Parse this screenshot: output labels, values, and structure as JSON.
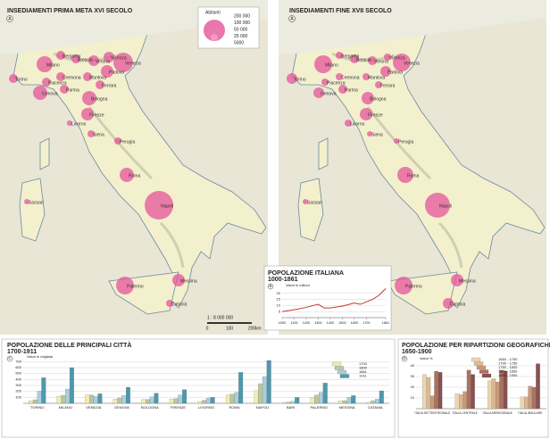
{
  "maps": [
    {
      "title": "INSEDIAMENTI PRIMA META XVI SECOLO",
      "letter": "A",
      "cities": [
        "Torino",
        "Milano",
        "Bergamo",
        "Brescia",
        "Verona",
        "Vicenza",
        "Padova",
        "Venezia",
        "Cremona",
        "Piacenza",
        "Parma",
        "Mantova",
        "Ferrara",
        "Genova",
        "Bologna",
        "Firenze",
        "Livorno",
        "Siena",
        "Perugia",
        "Roma",
        "Napoli",
        "Sassari",
        "Palermo",
        "Messina",
        "Catania"
      ]
    },
    {
      "title": "INSEDIAMENTI FINE XVII SECOLO",
      "letter": "A",
      "cities": [
        "Torino",
        "Milano",
        "Bergamo",
        "Brescia",
        "Verona",
        "Vicenza",
        "Padova",
        "Venezia",
        "Cremona",
        "Piacenza",
        "Parma",
        "Mantova",
        "Ferrara",
        "Genova",
        "Bologna",
        "Firenze",
        "Livorno",
        "Siena",
        "Perugia",
        "Roma",
        "Napoli",
        "Sassari",
        "Palermo",
        "Messina",
        "Catania"
      ]
    }
  ],
  "map_legend": {
    "title": "Abitanti",
    "labels": [
      "200 000",
      "100 000",
      "50 000",
      "25 000",
      "5000"
    ]
  },
  "scale": {
    "ratio": "1 : 8 000 000",
    "ticks": [
      "0",
      "100",
      "200"
    ],
    "unit": "km"
  },
  "chart_data": [
    {
      "type": "line",
      "title": "POPOLAZIONE ITALIANA",
      "subtitle": "1000-1861",
      "letter": "B",
      "y_label": "Valori in milioni",
      "x": [
        1000,
        1100,
        1200,
        1300,
        1350,
        1400,
        1500,
        1600,
        1650,
        1700,
        1750,
        1800,
        1861
      ],
      "values": [
        5,
        6.5,
        8.5,
        11,
        8,
        8,
        9.5,
        12,
        11,
        13,
        15,
        18,
        24
      ],
      "color": "#c0392b",
      "xlim": [
        1000,
        1861
      ],
      "xticks": [
        1000,
        1100,
        1200,
        1300,
        1400,
        1500,
        1600,
        1700,
        1861
      ],
      "ylim": [
        0,
        25
      ],
      "yticks": [
        5,
        10,
        15,
        20
      ]
    },
    {
      "type": "bar",
      "title": "POPOLAZIONE DELLE PRINCIPALI CITTÀ",
      "subtitle": "1700-1911",
      "letter": "C",
      "y_label": "Valori in migliaia",
      "categories": [
        "TORINO",
        "MILANO",
        "VENEZIA",
        "GENOVA",
        "BOLOGNA",
        "FIRENZE",
        "LIVORNO",
        "ROMA",
        "NAPOLI",
        "BARI",
        "PALERMO",
        "MESSINA",
        "CATANIA"
      ],
      "series": [
        {
          "name": "1700",
          "color": "#f2ecb0",
          "values": [
            44,
            120,
            140,
            70,
            65,
            70,
            30,
            140,
            215,
            15,
            100,
            40,
            16
          ]
        },
        {
          "name": "1800",
          "color": "#b9c6a0",
          "values": [
            60,
            135,
            140,
            90,
            65,
            80,
            50,
            155,
            330,
            20,
            140,
            45,
            45
          ]
        },
        {
          "name": "1861",
          "color": "#a9cfdc",
          "values": [
            205,
            240,
            115,
            130,
            110,
            140,
            85,
            185,
            450,
            35,
            185,
            100,
            70
          ]
        },
        {
          "name": "1911",
          "color": "#4f98ad",
          "values": [
            430,
            600,
            160,
            270,
            170,
            230,
            100,
            520,
            720,
            100,
            340,
            130,
            210
          ]
        }
      ],
      "ylim": [
        0,
        750
      ],
      "yticks": [
        100,
        200,
        300,
        400,
        500,
        600,
        700
      ]
    },
    {
      "type": "bar",
      "title": "POPOLAZIONE PER RIPARTIZIONI GEOGRAFICHE",
      "subtitle": "1650-1900",
      "letter": "D",
      "y_label": "Valori %",
      "categories": [
        "ITALIA SETTENTRIONALE",
        "ITALIA CENTRALE",
        "ITALIA MERIDIONALE",
        "ITALIA INSULARE"
      ],
      "series": [
        {
          "name": "1650 - 1700",
          "color": "#ecd6b0",
          "values": [
            32,
            14,
            26,
            11
          ]
        },
        {
          "name": "1700 - 1750",
          "color": "#dcb892",
          "values": [
            29,
            13,
            28,
            11
          ]
        },
        {
          "name": "1750 - 1800",
          "color": "#c89a7a",
          "values": [
            12,
            16,
            25,
            21
          ]
        },
        {
          "name": "1800 - 1850",
          "color": "#a9735f",
          "values": [
            35,
            36,
            36,
            20
          ]
        },
        {
          "name": "1850 - 1900",
          "color": "#8a5050",
          "values": [
            34,
            32,
            35,
            42
          ]
        }
      ],
      "ylim": [
        0,
        45
      ],
      "yticks": [
        10,
        20,
        30,
        40
      ]
    }
  ]
}
